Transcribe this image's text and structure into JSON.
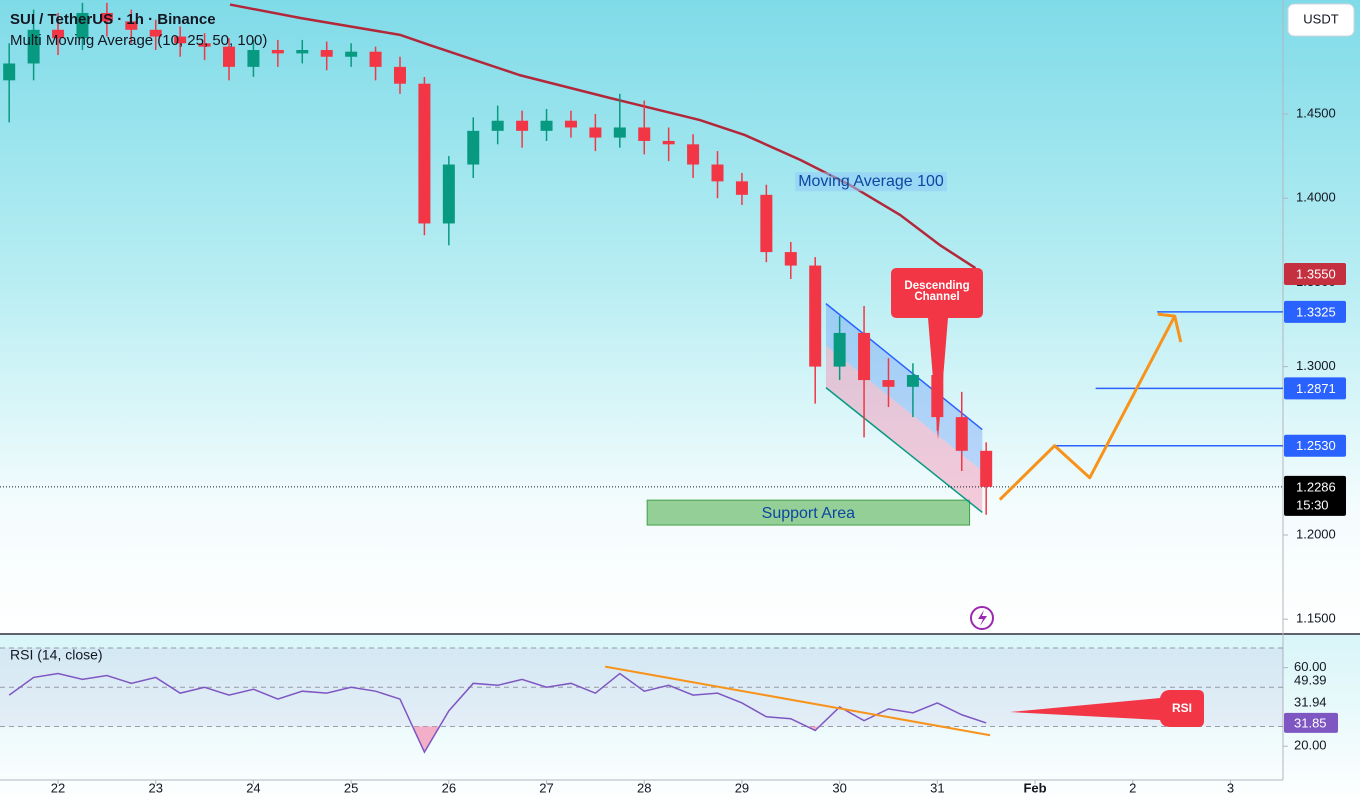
{
  "chart_data": {
    "type": "candlestick",
    "title": "SUI / TetherUS · 1h · Binance",
    "subtitle": "Multi Moving Average (10, 25, 50, 100)",
    "currency": "USDT",
    "up_color": "#089981",
    "down_color": "#f23645",
    "x": [
      -0.5,
      -0.25,
      0,
      0.25,
      0.5,
      0.75,
      1,
      1.25,
      1.5,
      1.75,
      2,
      2.25,
      2.5,
      2.75,
      3,
      3.25,
      3.5,
      3.75,
      4,
      4.25,
      4.5,
      4.75,
      5,
      5.25,
      5.5,
      5.75,
      6,
      6.25,
      6.5,
      6.75,
      7,
      7.25,
      7.5,
      7.75,
      8,
      8.25,
      8.5,
      8.75,
      9,
      9.25,
      9.5
    ],
    "open": [
      1.47,
      1.48,
      1.5,
      1.495,
      1.51,
      1.505,
      1.5,
      1.496,
      1.492,
      1.49,
      1.478,
      1.488,
      1.486,
      1.488,
      1.484,
      1.487,
      1.478,
      1.468,
      1.385,
      1.42,
      1.44,
      1.446,
      1.44,
      1.446,
      1.442,
      1.436,
      1.442,
      1.434,
      1.432,
      1.42,
      1.41,
      1.402,
      1.368,
      1.36,
      1.3,
      1.32,
      1.292,
      1.288,
      1.295,
      1.27,
      1.25
    ],
    "high": [
      1.492,
      1.512,
      1.51,
      1.516,
      1.516,
      1.512,
      1.506,
      1.502,
      1.498,
      1.495,
      1.494,
      1.494,
      1.494,
      1.493,
      1.492,
      1.49,
      1.484,
      1.472,
      1.425,
      1.448,
      1.455,
      1.452,
      1.453,
      1.452,
      1.45,
      1.462,
      1.458,
      1.442,
      1.438,
      1.428,
      1.415,
      1.408,
      1.374,
      1.365,
      1.33,
      1.336,
      1.305,
      1.302,
      1.3,
      1.285,
      1.255
    ],
    "low": [
      1.445,
      1.47,
      1.485,
      1.488,
      1.496,
      1.492,
      1.488,
      1.484,
      1.482,
      1.47,
      1.472,
      1.478,
      1.48,
      1.476,
      1.478,
      1.47,
      1.462,
      1.378,
      1.372,
      1.412,
      1.432,
      1.43,
      1.434,
      1.436,
      1.428,
      1.43,
      1.426,
      1.422,
      1.412,
      1.4,
      1.396,
      1.362,
      1.352,
      1.278,
      1.292,
      1.258,
      1.276,
      1.27,
      1.262,
      1.238,
      1.212
    ],
    "close": [
      1.48,
      1.5,
      1.495,
      1.51,
      1.505,
      1.5,
      1.496,
      1.492,
      1.49,
      1.478,
      1.488,
      1.486,
      1.488,
      1.484,
      1.487,
      1.478,
      1.468,
      1.385,
      1.42,
      1.44,
      1.446,
      1.44,
      1.446,
      1.442,
      1.436,
      1.442,
      1.434,
      1.432,
      1.42,
      1.41,
      1.402,
      1.368,
      1.36,
      1.3,
      1.32,
      1.292,
      1.288,
      1.295,
      1.27,
      1.25,
      1.2286
    ],
    "xlim": [
      -0.594,
      12.538
    ],
    "xticks": [
      {
        "value": 0,
        "label": "22"
      },
      {
        "value": 1,
        "label": "23"
      },
      {
        "value": 2,
        "label": "24"
      },
      {
        "value": 3,
        "label": "25"
      },
      {
        "value": 4,
        "label": "26"
      },
      {
        "value": 5,
        "label": "27"
      },
      {
        "value": 6,
        "label": "28"
      },
      {
        "value": 7,
        "label": "29"
      },
      {
        "value": 8,
        "label": "30"
      },
      {
        "value": 9,
        "label": "31"
      },
      {
        "value": 10,
        "label": "Feb"
      },
      {
        "value": 11,
        "label": "2"
      },
      {
        "value": 12,
        "label": "3"
      }
    ],
    "ylim": [
      1.1418,
      1.5177
    ],
    "yticks": [
      {
        "value": 1.15,
        "label": "1.1500"
      },
      {
        "value": 1.2,
        "label": "1.2000"
      },
      {
        "value": 1.25,
        "label": "1.2500"
      },
      {
        "value": 1.3,
        "label": "1.3000"
      },
      {
        "value": 1.35,
        "label": "1.3500"
      },
      {
        "value": 1.4,
        "label": "1.4000"
      },
      {
        "value": 1.45,
        "label": "1.4500"
      }
    ],
    "ma": {
      "name": "Moving Average 100",
      "color": "#b2283a",
      "x": [
        1.76,
        2.48,
        3.5,
        3.8,
        4.73,
        5.65,
        6.57,
        7.03,
        7.6,
        8.1,
        8.62,
        9.03,
        9.39
      ],
      "values": [
        1.515,
        1.507,
        1.497,
        1.491,
        1.473,
        1.4595,
        1.4464,
        1.4375,
        1.4227,
        1.408,
        1.39,
        1.372,
        1.3585
      ]
    },
    "price_labels": [
      {
        "value": 1.355,
        "label": "1.3550",
        "color": "#c4303f"
      },
      {
        "value": 1.3325,
        "label": "1.3325",
        "color": "#2962ff"
      },
      {
        "value": 1.2871,
        "label": "1.2871",
        "color": "#2962ff"
      },
      {
        "value": 1.253,
        "label": "1.2530",
        "color": "#2962ff"
      }
    ],
    "levels": [
      {
        "value": 1.3325,
        "start": 11.25
      },
      {
        "value": 1.2871,
        "start": 10.62
      },
      {
        "value": 1.253,
        "start": 10.2
      }
    ],
    "last_price": {
      "value": 1.2286,
      "label": "1.2286",
      "countdown": "15:30"
    },
    "channel": {
      "x": [
        7.86,
        9.46
      ],
      "upper": [
        1.3374,
        1.2626
      ],
      "lower": [
        1.2875,
        1.2134
      ]
    },
    "support_area": {
      "label": "Support Area",
      "x": [
        6.03,
        9.33
      ],
      "y": [
        1.2059,
        1.2207
      ]
    },
    "callout_lines": [
      "Descending",
      "Channel"
    ],
    "projection": {
      "color": "#f7931a",
      "x": [
        9.64,
        10.2,
        10.56,
        11.43
      ],
      "values": [
        1.221,
        1.253,
        1.234,
        1.33
      ]
    },
    "rsi": {
      "title": "RSI (14, close)",
      "color": "#7e57c2",
      "values": [
        46,
        55,
        57,
        54,
        56,
        52,
        55,
        47,
        50,
        46,
        49,
        44,
        48,
        47,
        50,
        48,
        44,
        17,
        38,
        52,
        51,
        54,
        50,
        52,
        47,
        57,
        48,
        51,
        46,
        47,
        42,
        35,
        34,
        28,
        40,
        33,
        39,
        37,
        42,
        36,
        31.85
      ],
      "ylim": [
        2.8,
        76.6
      ],
      "yticks": [
        {
          "value": 60,
          "label": "60.00"
        },
        {
          "value": 20,
          "label": "20.00"
        }
      ],
      "bands": [
        70,
        50,
        30
      ],
      "current": {
        "value": 31.85,
        "label": "31.85"
      },
      "side_labels": [
        {
          "value": 49.39,
          "label": "49.39"
        },
        {
          "value": 31.94,
          "label": "31.94"
        }
      ],
      "trendline": {
        "x": [
          5.6,
          9.54
        ],
        "values": [
          60.5,
          25.6
        ]
      },
      "callout": "RSI"
    }
  }
}
